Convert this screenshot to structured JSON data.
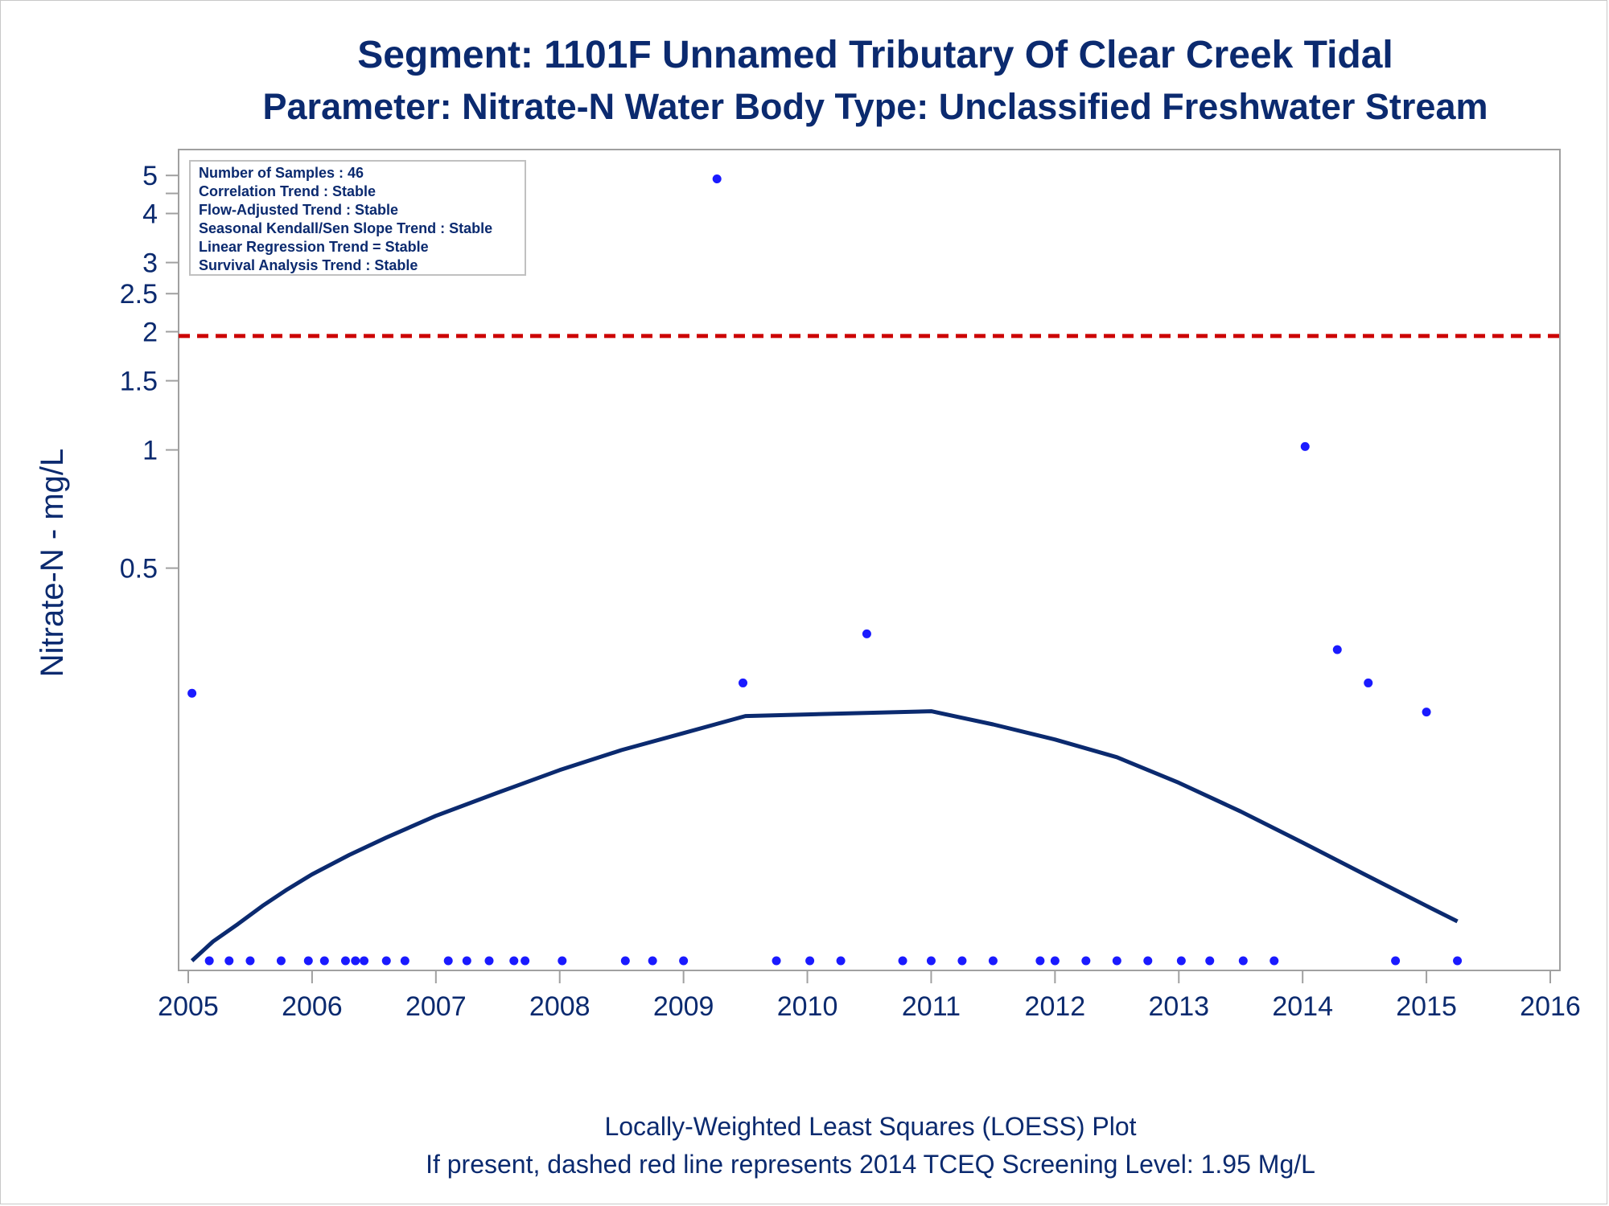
{
  "colors": {
    "text": "#0b2a6f",
    "point": "#1a1aff",
    "loess": "#0b2a6f",
    "screening": "#cc0000",
    "frame": "#a0a0a0"
  },
  "chart_data": {
    "type": "scatter",
    "title": "Segment: 1101F  Unnamed Tributary Of Clear Creek Tidal",
    "subtitle": "Parameter: Nitrate-N   Water Body Type: Unclassified Freshwater Stream",
    "ylabel": "Nitrate-N - mg/L",
    "xlabel": "",
    "y_scale": "log",
    "xlim": [
      2005,
      2016
    ],
    "ylim": [
      0.05,
      5.5
    ],
    "x_ticks": [
      2005,
      2006,
      2007,
      2008,
      2009,
      2010,
      2011,
      2012,
      2013,
      2014,
      2015,
      2016
    ],
    "y_ticks": [
      {
        "value": 5,
        "label": "5"
      },
      {
        "value": 4,
        "label": "4"
      },
      {
        "value": 3,
        "label": "3"
      },
      {
        "value": 2.5,
        "label": "2.5"
      },
      {
        "value": 2,
        "label": "2"
      },
      {
        "value": 1.5,
        "label": "1.5"
      },
      {
        "value": 1,
        "label": "1"
      },
      {
        "value": 0.5,
        "label": "0.5"
      }
    ],
    "y_minor_ticks": [
      4.5
    ],
    "grid": false,
    "stats_box": {
      "placement": "top-left",
      "lines": [
        "Number of Samples : 46",
        "Correlation Trend : Stable",
        "Flow-Adjusted Trend : Stable",
        "Seasonal Kendall/Sen Slope Trend : Stable",
        "Linear Regression Trend = Stable",
        "Survival Analysis Trend : Stable"
      ]
    },
    "screening_level": {
      "value": 1.95,
      "style": "dashed"
    },
    "series": [
      {
        "kind": "points",
        "points": [
          {
            "x": 2005.03,
            "y": 0.24
          },
          {
            "x": 2005.17,
            "y": 0.05
          },
          {
            "x": 2005.33,
            "y": 0.05
          },
          {
            "x": 2005.5,
            "y": 0.05
          },
          {
            "x": 2005.75,
            "y": 0.05
          },
          {
            "x": 2005.97,
            "y": 0.05
          },
          {
            "x": 2006.1,
            "y": 0.05
          },
          {
            "x": 2006.27,
            "y": 0.05
          },
          {
            "x": 2006.35,
            "y": 0.05
          },
          {
            "x": 2006.42,
            "y": 0.05
          },
          {
            "x": 2006.6,
            "y": 0.05
          },
          {
            "x": 2006.75,
            "y": 0.05
          },
          {
            "x": 2007.1,
            "y": 0.05
          },
          {
            "x": 2007.25,
            "y": 0.05
          },
          {
            "x": 2007.43,
            "y": 0.05
          },
          {
            "x": 2007.63,
            "y": 0.05
          },
          {
            "x": 2007.72,
            "y": 0.05
          },
          {
            "x": 2008.02,
            "y": 0.05
          },
          {
            "x": 2008.53,
            "y": 0.05
          },
          {
            "x": 2008.75,
            "y": 0.05
          },
          {
            "x": 2009.0,
            "y": 0.05
          },
          {
            "x": 2009.27,
            "y": 4.9
          },
          {
            "x": 2009.48,
            "y": 0.255
          },
          {
            "x": 2009.75,
            "y": 0.05
          },
          {
            "x": 2010.02,
            "y": 0.05
          },
          {
            "x": 2010.27,
            "y": 0.05
          },
          {
            "x": 2010.48,
            "y": 0.34
          },
          {
            "x": 2010.77,
            "y": 0.05
          },
          {
            "x": 2011.0,
            "y": 0.05
          },
          {
            "x": 2011.25,
            "y": 0.05
          },
          {
            "x": 2011.5,
            "y": 0.05
          },
          {
            "x": 2011.88,
            "y": 0.05
          },
          {
            "x": 2012.0,
            "y": 0.05
          },
          {
            "x": 2012.25,
            "y": 0.05
          },
          {
            "x": 2012.5,
            "y": 0.05
          },
          {
            "x": 2012.75,
            "y": 0.05
          },
          {
            "x": 2013.02,
            "y": 0.05
          },
          {
            "x": 2013.25,
            "y": 0.05
          },
          {
            "x": 2013.52,
            "y": 0.05
          },
          {
            "x": 2013.77,
            "y": 0.05
          },
          {
            "x": 2014.02,
            "y": 1.02
          },
          {
            "x": 2014.28,
            "y": 0.31
          },
          {
            "x": 2014.53,
            "y": 0.255
          },
          {
            "x": 2014.75,
            "y": 0.05
          },
          {
            "x": 2015.0,
            "y": 0.215
          },
          {
            "x": 2015.25,
            "y": 0.05
          }
        ]
      },
      {
        "kind": "loess",
        "points": [
          {
            "x": 2005.03,
            "y": 0.05
          },
          {
            "x": 2005.2,
            "y": 0.056
          },
          {
            "x": 2005.4,
            "y": 0.062
          },
          {
            "x": 2005.6,
            "y": 0.069
          },
          {
            "x": 2005.8,
            "y": 0.076
          },
          {
            "x": 2006.0,
            "y": 0.083
          },
          {
            "x": 2006.3,
            "y": 0.093
          },
          {
            "x": 2006.6,
            "y": 0.103
          },
          {
            "x": 2007.0,
            "y": 0.117
          },
          {
            "x": 2007.5,
            "y": 0.134
          },
          {
            "x": 2008.0,
            "y": 0.153
          },
          {
            "x": 2008.5,
            "y": 0.172
          },
          {
            "x": 2009.0,
            "y": 0.19
          },
          {
            "x": 2009.5,
            "y": 0.21
          },
          {
            "x": 2010.0,
            "y": 0.212
          },
          {
            "x": 2010.5,
            "y": 0.214
          },
          {
            "x": 2011.0,
            "y": 0.216
          },
          {
            "x": 2011.5,
            "y": 0.2
          },
          {
            "x": 2012.0,
            "y": 0.183
          },
          {
            "x": 2012.5,
            "y": 0.165
          },
          {
            "x": 2013.0,
            "y": 0.142
          },
          {
            "x": 2013.5,
            "y": 0.12
          },
          {
            "x": 2014.0,
            "y": 0.1
          },
          {
            "x": 2014.5,
            "y": 0.083
          },
          {
            "x": 2015.0,
            "y": 0.069
          },
          {
            "x": 2015.25,
            "y": 0.063
          }
        ]
      }
    ],
    "footnotes": [
      "Locally-Weighted Least Squares (LOESS) Plot",
      "If present, dashed red line represents 2014 TCEQ Screening Level: 1.95 Mg/L"
    ]
  }
}
